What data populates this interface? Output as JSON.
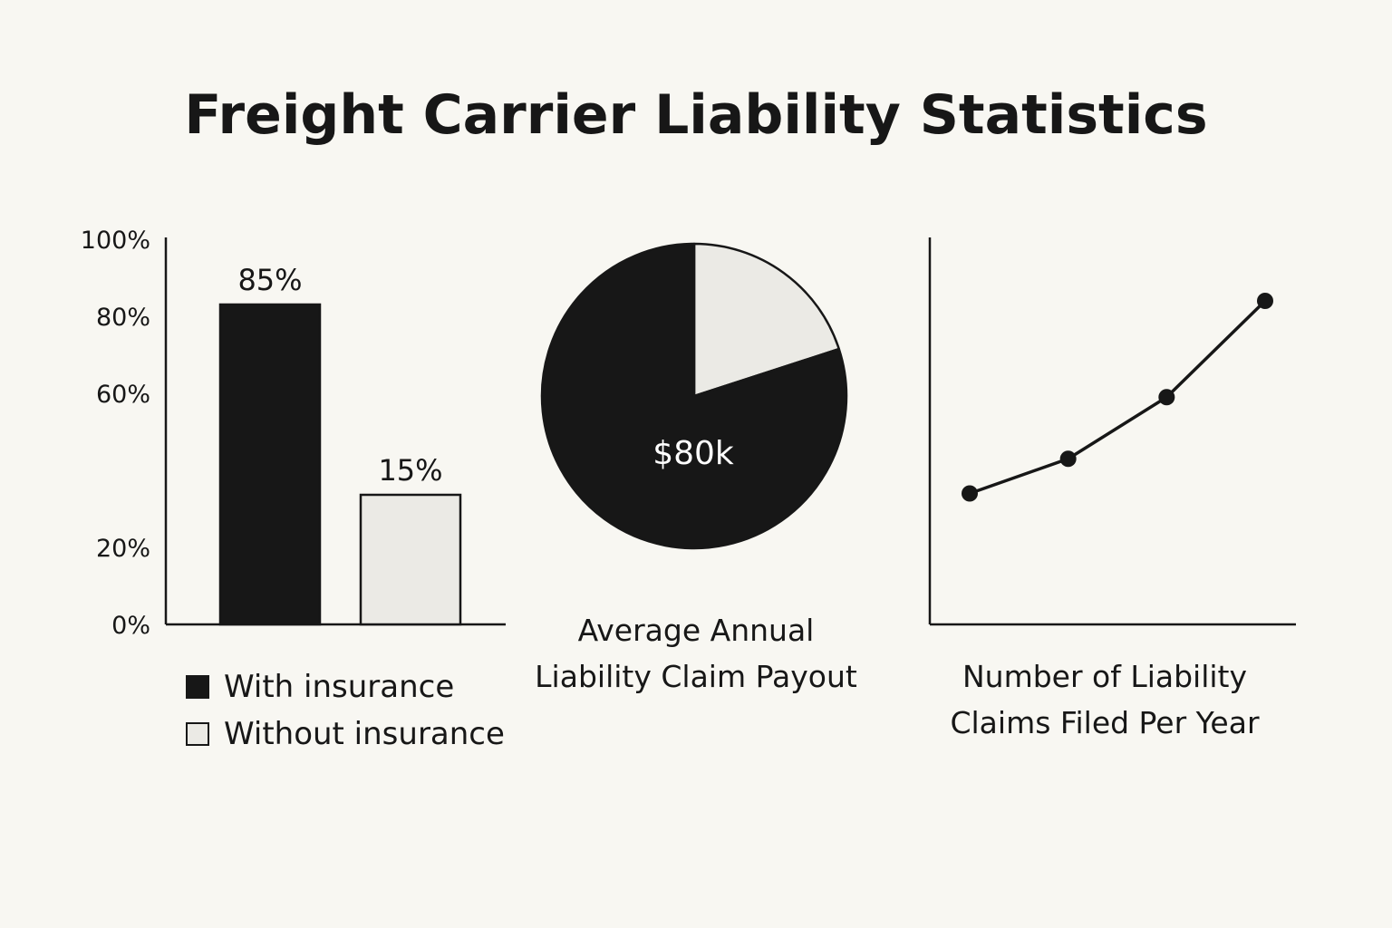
{
  "title": "Freight Carrier Liability Statistics",
  "colors": {
    "background": "#f8f7f2",
    "ink": "#171717",
    "light": "#ebeae5",
    "white_text": "#ffffff"
  },
  "chart_data": [
    {
      "type": "bar",
      "categories": [
        "With insurance",
        "Without insurance"
      ],
      "values": [
        85,
        15
      ],
      "ylim": [
        0,
        100
      ],
      "yticks": [
        "0%",
        "20%",
        "60%",
        "80%",
        "100%"
      ],
      "ytick_values": [
        0,
        20,
        60,
        80,
        100
      ],
      "data_labels": [
        "85%",
        "15%"
      ],
      "legend": [
        {
          "label": "With insurance",
          "color": "#171717"
        },
        {
          "label": "Without insurance",
          "color": "#ebeae5"
        }
      ],
      "legend_position": "bottom-left",
      "grid": false
    },
    {
      "type": "pie",
      "slices": [
        {
          "value": 80,
          "color": "#171717",
          "label": "$80k"
        },
        {
          "value": 20,
          "color": "#ebeae5",
          "label": ""
        }
      ],
      "center_label": "$80k",
      "caption_lines": [
        "Average Annual",
        "Liability Claim Payout"
      ]
    },
    {
      "type": "line",
      "x": [
        1,
        2,
        3,
        4
      ],
      "y": [
        34,
        43,
        59,
        84
      ],
      "ylim": [
        0,
        100
      ],
      "grid": false,
      "caption_lines": [
        "Number of Liability",
        "Claims Filed Per Year"
      ]
    }
  ]
}
